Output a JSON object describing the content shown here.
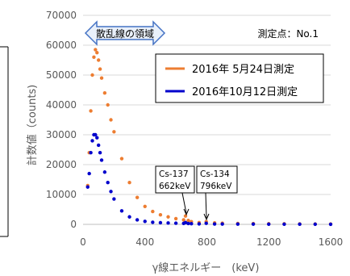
{
  "chart_data": {
    "type": "scatter",
    "xlabel": "γ線エネルギー　(keV)",
    "ylabel": "計数値（counts)",
    "xlim": [
      0,
      1600
    ],
    "ylim": [
      0,
      70000
    ],
    "x_ticks": [
      "0",
      "400",
      "800",
      "1200",
      "1600"
    ],
    "y_ticks": [
      "0",
      "10000",
      "20000",
      "30000",
      "40000",
      "50000",
      "60000",
      "70000"
    ],
    "grid": "horizontal",
    "series": [
      {
        "name": "2016年 5月24日測定",
        "color": "#ed7d31",
        "x": [
          30,
          40,
          50,
          60,
          70,
          80,
          90,
          100,
          110,
          120,
          140,
          160,
          180,
          200,
          250,
          300,
          350,
          400,
          450,
          500,
          550,
          600,
          650,
          662,
          680,
          700,
          750,
          796,
          850,
          900,
          1000,
          1100,
          1200,
          1300,
          1400,
          1500,
          1600
        ],
        "y": [
          13000,
          24000,
          38000,
          50000,
          56000,
          58500,
          57500,
          55000,
          52000,
          49000,
          44000,
          40000,
          35000,
          31000,
          22000,
          14000,
          9000,
          6000,
          4300,
          3200,
          2500,
          1900,
          1500,
          2800,
          1300,
          900,
          600,
          900,
          500,
          400,
          300,
          250,
          200,
          180,
          150,
          120,
          100
        ]
      },
      {
        "name": "2016年10月12日測定",
        "color": "#0000cc",
        "x": [
          30,
          40,
          50,
          60,
          70,
          80,
          90,
          100,
          110,
          120,
          140,
          160,
          180,
          200,
          250,
          300,
          350,
          400,
          450,
          500,
          550,
          600,
          650,
          662,
          680,
          700,
          750,
          796,
          850,
          900,
          1000,
          1100,
          1200,
          1300,
          1400,
          1500,
          1600
        ],
        "y": [
          12500,
          17000,
          24000,
          28000,
          30000,
          30000,
          29000,
          26500,
          24000,
          21500,
          17500,
          14000,
          11000,
          8500,
          4500,
          2500,
          1500,
          1000,
          700,
          550,
          450,
          380,
          320,
          600,
          280,
          220,
          160,
          350,
          120,
          100,
          80,
          70,
          60,
          50,
          40,
          35,
          30
        ]
      }
    ],
    "annotations": {
      "region_label": "散乱線の領域",
      "site_label": "測定点：No.1",
      "peak1_name": "Cs-137",
      "peak1_energy": "662keV",
      "peak2_name": "Cs-134",
      "peak2_energy": "796keV"
    }
  }
}
